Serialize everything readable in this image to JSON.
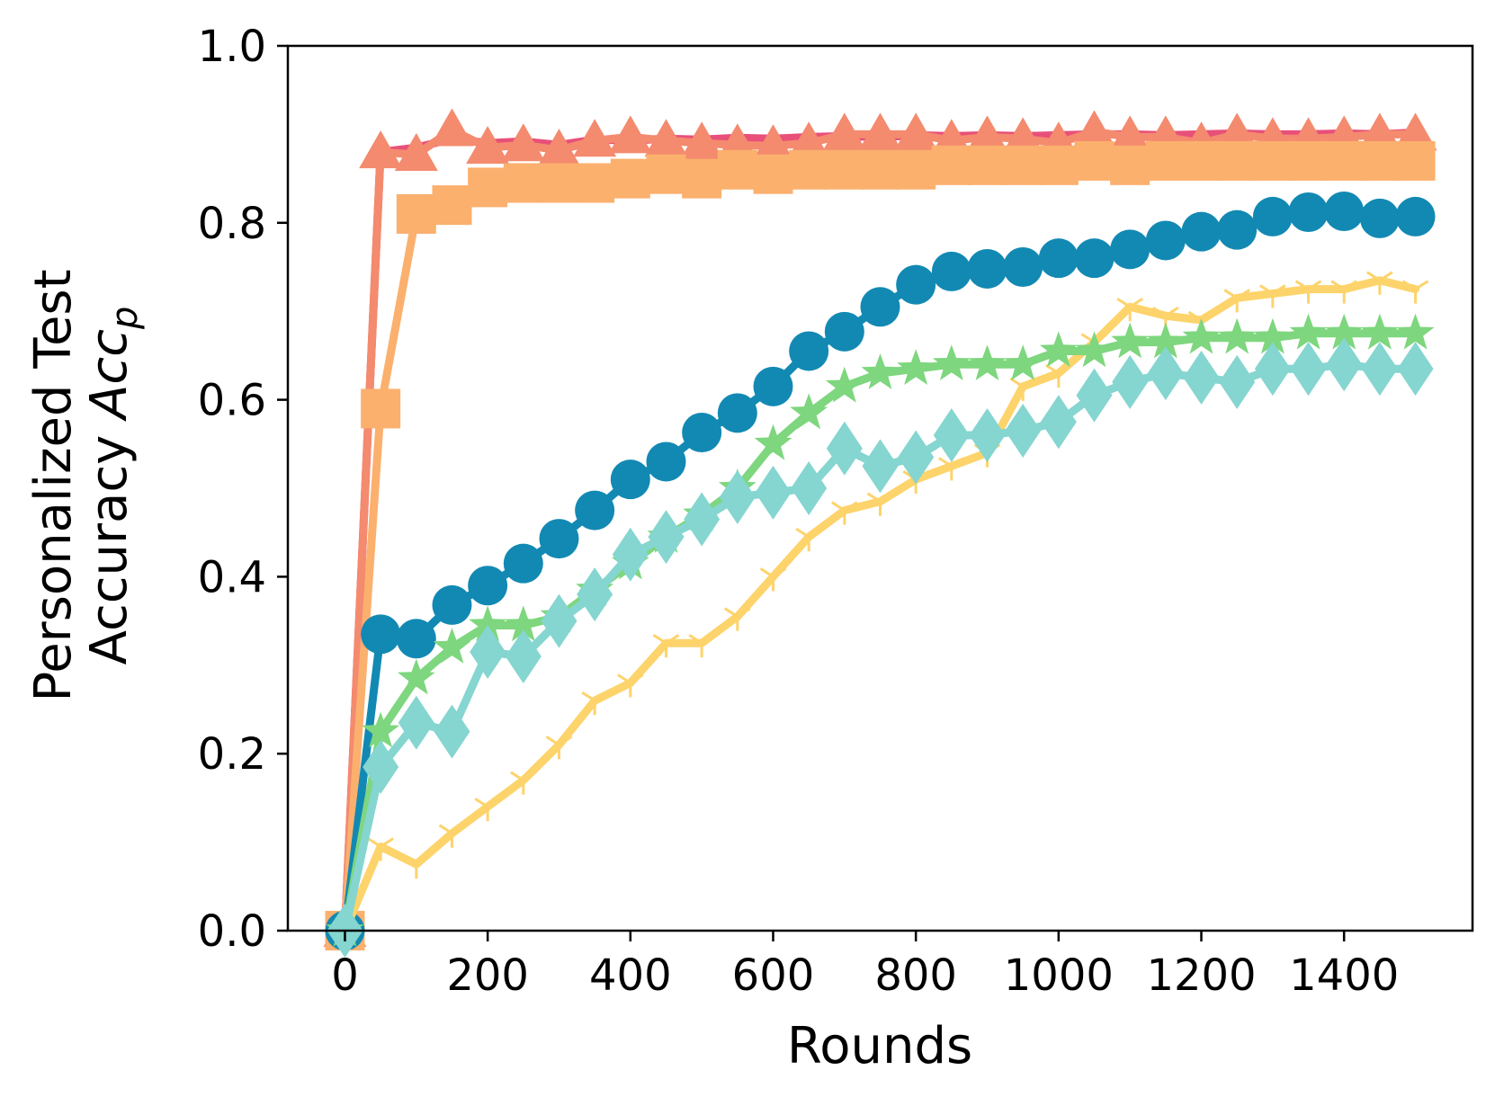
{
  "chart_data": {
    "type": "line",
    "xlabel": "Rounds",
    "ylabel_line1": "Personalized Test",
    "ylabel_line2": "Accuracy ",
    "ylabel_math": "Acc",
    "ylabel_sub": "p",
    "xlim": [
      -80,
      1580
    ],
    "ylim": [
      0,
      1.0
    ],
    "x_ticks": [
      0,
      200,
      400,
      600,
      800,
      1000,
      1200,
      1400
    ],
    "x_tick_labels": [
      "0",
      "200",
      "400",
      "600",
      "800",
      "1000",
      "1200",
      "1400"
    ],
    "y_ticks": [
      0,
      0.2,
      0.4,
      0.6,
      0.8,
      1.0
    ],
    "y_tick_labels": [
      "0.0",
      "0.2",
      "0.4",
      "0.6",
      "0.8",
      "1.0"
    ],
    "grid": false,
    "x": [
      0,
      50,
      100,
      150,
      200,
      250,
      300,
      350,
      400,
      450,
      500,
      550,
      600,
      650,
      700,
      750,
      800,
      850,
      900,
      950,
      1000,
      1050,
      1100,
      1150,
      1200,
      1250,
      1300,
      1350,
      1400,
      1450,
      1500
    ],
    "series": [
      {
        "color": "#e8507a",
        "marker": "none",
        "values": [
          0.0,
          0.88,
          0.885,
          0.895,
          0.89,
          0.892,
          0.888,
          0.894,
          0.893,
          0.895,
          0.894,
          0.896,
          0.895,
          0.897,
          0.898,
          0.897,
          0.899,
          0.898,
          0.899,
          0.898,
          0.899,
          0.9,
          0.9,
          0.899,
          0.9,
          0.901,
          0.9,
          0.9,
          0.901,
          0.9,
          0.902
        ]
      },
      {
        "color": "#f48a6e",
        "marker": "triangle",
        "values": [
          0.0,
          0.88,
          0.877,
          0.905,
          0.885,
          0.888,
          0.882,
          0.893,
          0.897,
          0.893,
          0.89,
          0.888,
          0.887,
          0.89,
          0.9,
          0.9,
          0.9,
          0.893,
          0.897,
          0.895,
          0.89,
          0.903,
          0.897,
          0.897,
          0.89,
          0.9,
          0.895,
          0.895,
          0.897,
          0.9,
          0.9
        ]
      },
      {
        "color": "#fbb06e",
        "marker": "square",
        "values": [
          0.0,
          0.59,
          0.81,
          0.82,
          0.84,
          0.845,
          0.845,
          0.845,
          0.85,
          0.855,
          0.85,
          0.86,
          0.855,
          0.86,
          0.86,
          0.86,
          0.86,
          0.865,
          0.865,
          0.865,
          0.865,
          0.87,
          0.865,
          0.87,
          0.87,
          0.87,
          0.87,
          0.87,
          0.87,
          0.87,
          0.87
        ]
      },
      {
        "color": "#1289b3",
        "marker": "circle",
        "values": [
          0.0,
          0.335,
          0.33,
          0.368,
          0.39,
          0.415,
          0.443,
          0.475,
          0.51,
          0.53,
          0.563,
          0.585,
          0.615,
          0.655,
          0.677,
          0.705,
          0.73,
          0.745,
          0.748,
          0.75,
          0.76,
          0.76,
          0.77,
          0.78,
          0.79,
          0.792,
          0.807,
          0.812,
          0.813,
          0.805,
          0.807
        ]
      },
      {
        "color": "#fdd36b",
        "marker": "tri-down",
        "values": [
          0.0,
          0.095,
          0.075,
          0.11,
          0.14,
          0.17,
          0.21,
          0.26,
          0.28,
          0.325,
          0.325,
          0.355,
          0.4,
          0.445,
          0.475,
          0.485,
          0.51,
          0.525,
          0.54,
          0.615,
          0.63,
          0.665,
          0.705,
          0.695,
          0.69,
          0.715,
          0.72,
          0.725,
          0.725,
          0.735,
          0.725
        ]
      },
      {
        "color": "#7ed67e",
        "marker": "star",
        "values": [
          0.0,
          0.225,
          0.285,
          0.32,
          0.345,
          0.345,
          0.355,
          0.385,
          0.415,
          0.445,
          0.47,
          0.5,
          0.55,
          0.585,
          0.615,
          0.63,
          0.635,
          0.64,
          0.64,
          0.64,
          0.655,
          0.655,
          0.665,
          0.665,
          0.67,
          0.67,
          0.67,
          0.675,
          0.675,
          0.675,
          0.675
        ]
      },
      {
        "color": "#85d5d0",
        "marker": "diamond",
        "values": [
          0.0,
          0.185,
          0.235,
          0.225,
          0.315,
          0.31,
          0.35,
          0.38,
          0.425,
          0.445,
          0.465,
          0.49,
          0.495,
          0.5,
          0.545,
          0.525,
          0.535,
          0.56,
          0.56,
          0.565,
          0.575,
          0.605,
          0.62,
          0.63,
          0.625,
          0.62,
          0.635,
          0.635,
          0.64,
          0.635,
          0.635
        ]
      }
    ]
  }
}
